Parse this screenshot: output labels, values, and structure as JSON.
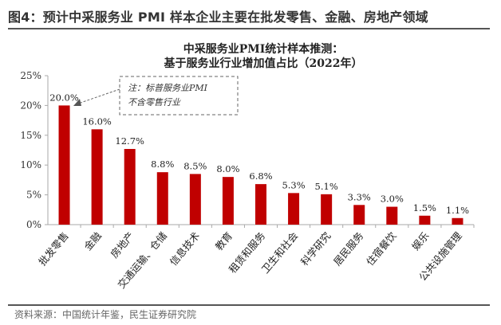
{
  "figure_title": "图4：预计中采服务业 PMI 样本企业主要在批发零售、金融、房地产领域",
  "source": "资料来源：中国统计年鉴，民生证券研究院",
  "chart_data": {
    "type": "bar",
    "title_line1": "中采服务业PMI统计样本推测：",
    "title_line2": "基于服务业行业增加值占比（2022年）",
    "categories": [
      "批发零售",
      "金融",
      "房地产",
      "交通运输、仓储",
      "信息技术",
      "教育",
      "租赁和服务",
      "卫生和社会",
      "科学研究",
      "居民服务",
      "住宿餐饮",
      "娱乐",
      "公共设施管理"
    ],
    "values": [
      20.0,
      16.0,
      12.7,
      8.8,
      8.5,
      8.0,
      6.8,
      5.3,
      5.1,
      3.3,
      3.0,
      1.5,
      1.1
    ],
    "data_labels": [
      "20.0%",
      "16.0%",
      "12.7%",
      "8.8%",
      "8.5%",
      "8.0%",
      "6.8%",
      "5.3%",
      "5.1%",
      "3.3%",
      "3.0%",
      "1.5%",
      "1.1%"
    ],
    "ylim": [
      0,
      25
    ],
    "yticks": [
      "0%",
      "5%",
      "10%",
      "15%",
      "20%",
      "25%"
    ],
    "bar_color": "#c00000",
    "grid": false,
    "annotation": {
      "line1": "注：标普服务业PMI",
      "line2": "不含零售行业"
    }
  }
}
